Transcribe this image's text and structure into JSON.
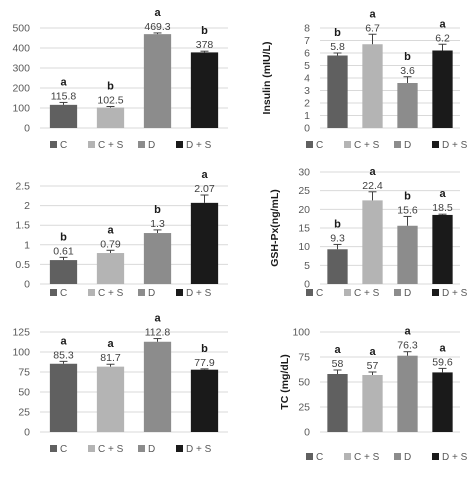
{
  "figure": {
    "colors": {
      "C": "#606060",
      "C + S": "#b4b4b4",
      "D": "#8c8c8c",
      "D + S": "#1a1a1a",
      "grid": "#d9d9d9",
      "axis_text": "#595959",
      "bar_text": "#404040",
      "letter_text": "#1a1a1a"
    }
  },
  "chart_data": [
    {
      "type": "bar",
      "title": "",
      "xlabel": "",
      "ylabel": "",
      "ylim": [
        0,
        500
      ],
      "yticks": [
        "0",
        "100",
        "200",
        "300",
        "400",
        "500"
      ],
      "grid": true,
      "legend": "bottom",
      "categories": [
        "C",
        "C + S",
        "D",
        "D + S"
      ],
      "values": [
        115.8,
        102.5,
        469.3,
        378
      ],
      "errors": [
        12,
        5,
        6,
        6
      ],
      "value_labels": [
        "115.8",
        "102.5",
        "469.3",
        "378"
      ],
      "letters": [
        "a",
        "b",
        "a",
        "b"
      ]
    },
    {
      "type": "bar",
      "title": "",
      "xlabel": "",
      "ylabel": "Insulin (mIU/L)",
      "ylim": [
        0,
        8
      ],
      "yticks": [
        "0",
        "1",
        "2",
        "3",
        "4",
        "5",
        "6",
        "7",
        "8"
      ],
      "grid": true,
      "legend": "bottom",
      "categories": [
        "C",
        "C + S",
        "D",
        "D + S"
      ],
      "values": [
        5.8,
        6.7,
        3.6,
        6.2
      ],
      "errors": [
        0.2,
        0.8,
        0.5,
        0.5
      ],
      "value_labels": [
        "5.8",
        "6.7",
        "3.6",
        "6.2"
      ],
      "letters": [
        "b",
        "a",
        "b",
        "a"
      ]
    },
    {
      "type": "bar",
      "title": "",
      "xlabel": "",
      "ylabel": "",
      "ylim": [
        0,
        2.5
      ],
      "yticks": [
        "0",
        "0.5",
        "1",
        "1.5",
        "2",
        "2.5"
      ],
      "grid": true,
      "legend": "bottom",
      "categories": [
        "C",
        "C + S",
        "D",
        "D + S"
      ],
      "values": [
        0.61,
        0.79,
        1.3,
        2.07
      ],
      "errors": [
        0.07,
        0.07,
        0.08,
        0.2
      ],
      "value_labels": [
        "0.61",
        "0.79",
        "1.3",
        "2.07"
      ],
      "letters": [
        "b",
        "a",
        "b",
        "a"
      ]
    },
    {
      "type": "bar",
      "title": "",
      "xlabel": "",
      "ylabel": "GSH-Px(ng/mL)",
      "ylim": [
        0,
        30
      ],
      "yticks": [
        "0",
        "5",
        "10",
        "15",
        "20",
        "25",
        "30"
      ],
      "grid": true,
      "legend": "bottom",
      "categories": [
        "C",
        "C + S",
        "D",
        "D + S"
      ],
      "values": [
        9.3,
        22.4,
        15.6,
        18.5
      ],
      "errors": [
        1.3,
        2.3,
        2.5,
        0.2
      ],
      "value_labels": [
        "9.3",
        "22.4",
        "15.6",
        "18.5"
      ],
      "letters": [
        "b",
        "a",
        "b",
        "a"
      ]
    },
    {
      "type": "bar",
      "title": "",
      "xlabel": "",
      "ylabel": "",
      "ylim": [
        0,
        125
      ],
      "yticks": [
        "0",
        "25",
        "50",
        "75",
        "100",
        "125"
      ],
      "grid": true,
      "legend": "bottom",
      "categories": [
        "C",
        "C + S",
        "D",
        "D + S"
      ],
      "values": [
        85.3,
        81.7,
        112.8,
        77.9
      ],
      "errors": [
        3,
        3,
        4,
        1
      ],
      "value_labels": [
        "85.3",
        "81.7",
        "112.8",
        "77.9"
      ],
      "letters": [
        "a",
        "a",
        "a",
        "b"
      ]
    },
    {
      "type": "bar",
      "title": "",
      "xlabel": "",
      "ylabel": "TC (mg/dL)",
      "ylim": [
        0,
        100
      ],
      "yticks": [
        "0",
        "25",
        "50",
        "75",
        "100"
      ],
      "grid": true,
      "legend": "bottom",
      "categories": [
        "C",
        "C + S",
        "D",
        "D + S"
      ],
      "values": [
        58,
        57,
        76.3,
        59.6
      ],
      "errors": [
        4,
        3,
        4,
        4
      ],
      "value_labels": [
        "58",
        "57",
        "76.3",
        "59.6"
      ],
      "letters": [
        "a",
        "a",
        "a",
        "a"
      ]
    }
  ]
}
